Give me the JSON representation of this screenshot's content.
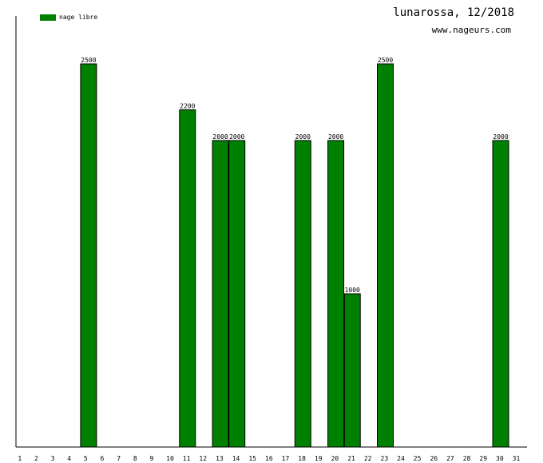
{
  "header": {
    "title": "lunarossa, 12/2018",
    "subtitle": "www.nageurs.com"
  },
  "legend": {
    "label": "nage libre",
    "color": "#008000"
  },
  "chart_data": {
    "type": "bar",
    "title": "lunarossa, 12/2018",
    "xlabel": "",
    "ylabel": "",
    "categories": [
      "1",
      "2",
      "3",
      "4",
      "5",
      "6",
      "7",
      "8",
      "9",
      "10",
      "11",
      "12",
      "13",
      "14",
      "15",
      "16",
      "17",
      "18",
      "19",
      "20",
      "21",
      "22",
      "23",
      "24",
      "25",
      "26",
      "27",
      "28",
      "29",
      "30",
      "31"
    ],
    "series": [
      {
        "name": "nage libre",
        "color": "#008000",
        "values": [
          0,
          0,
          0,
          0,
          2500,
          0,
          0,
          0,
          0,
          0,
          2200,
          0,
          2000,
          2000,
          0,
          0,
          0,
          2000,
          0,
          2000,
          1000,
          0,
          2500,
          0,
          0,
          0,
          0,
          0,
          0,
          2000,
          0
        ]
      }
    ],
    "ylim": [
      0,
      2800
    ],
    "grid": false,
    "legend_position": "top-left"
  }
}
